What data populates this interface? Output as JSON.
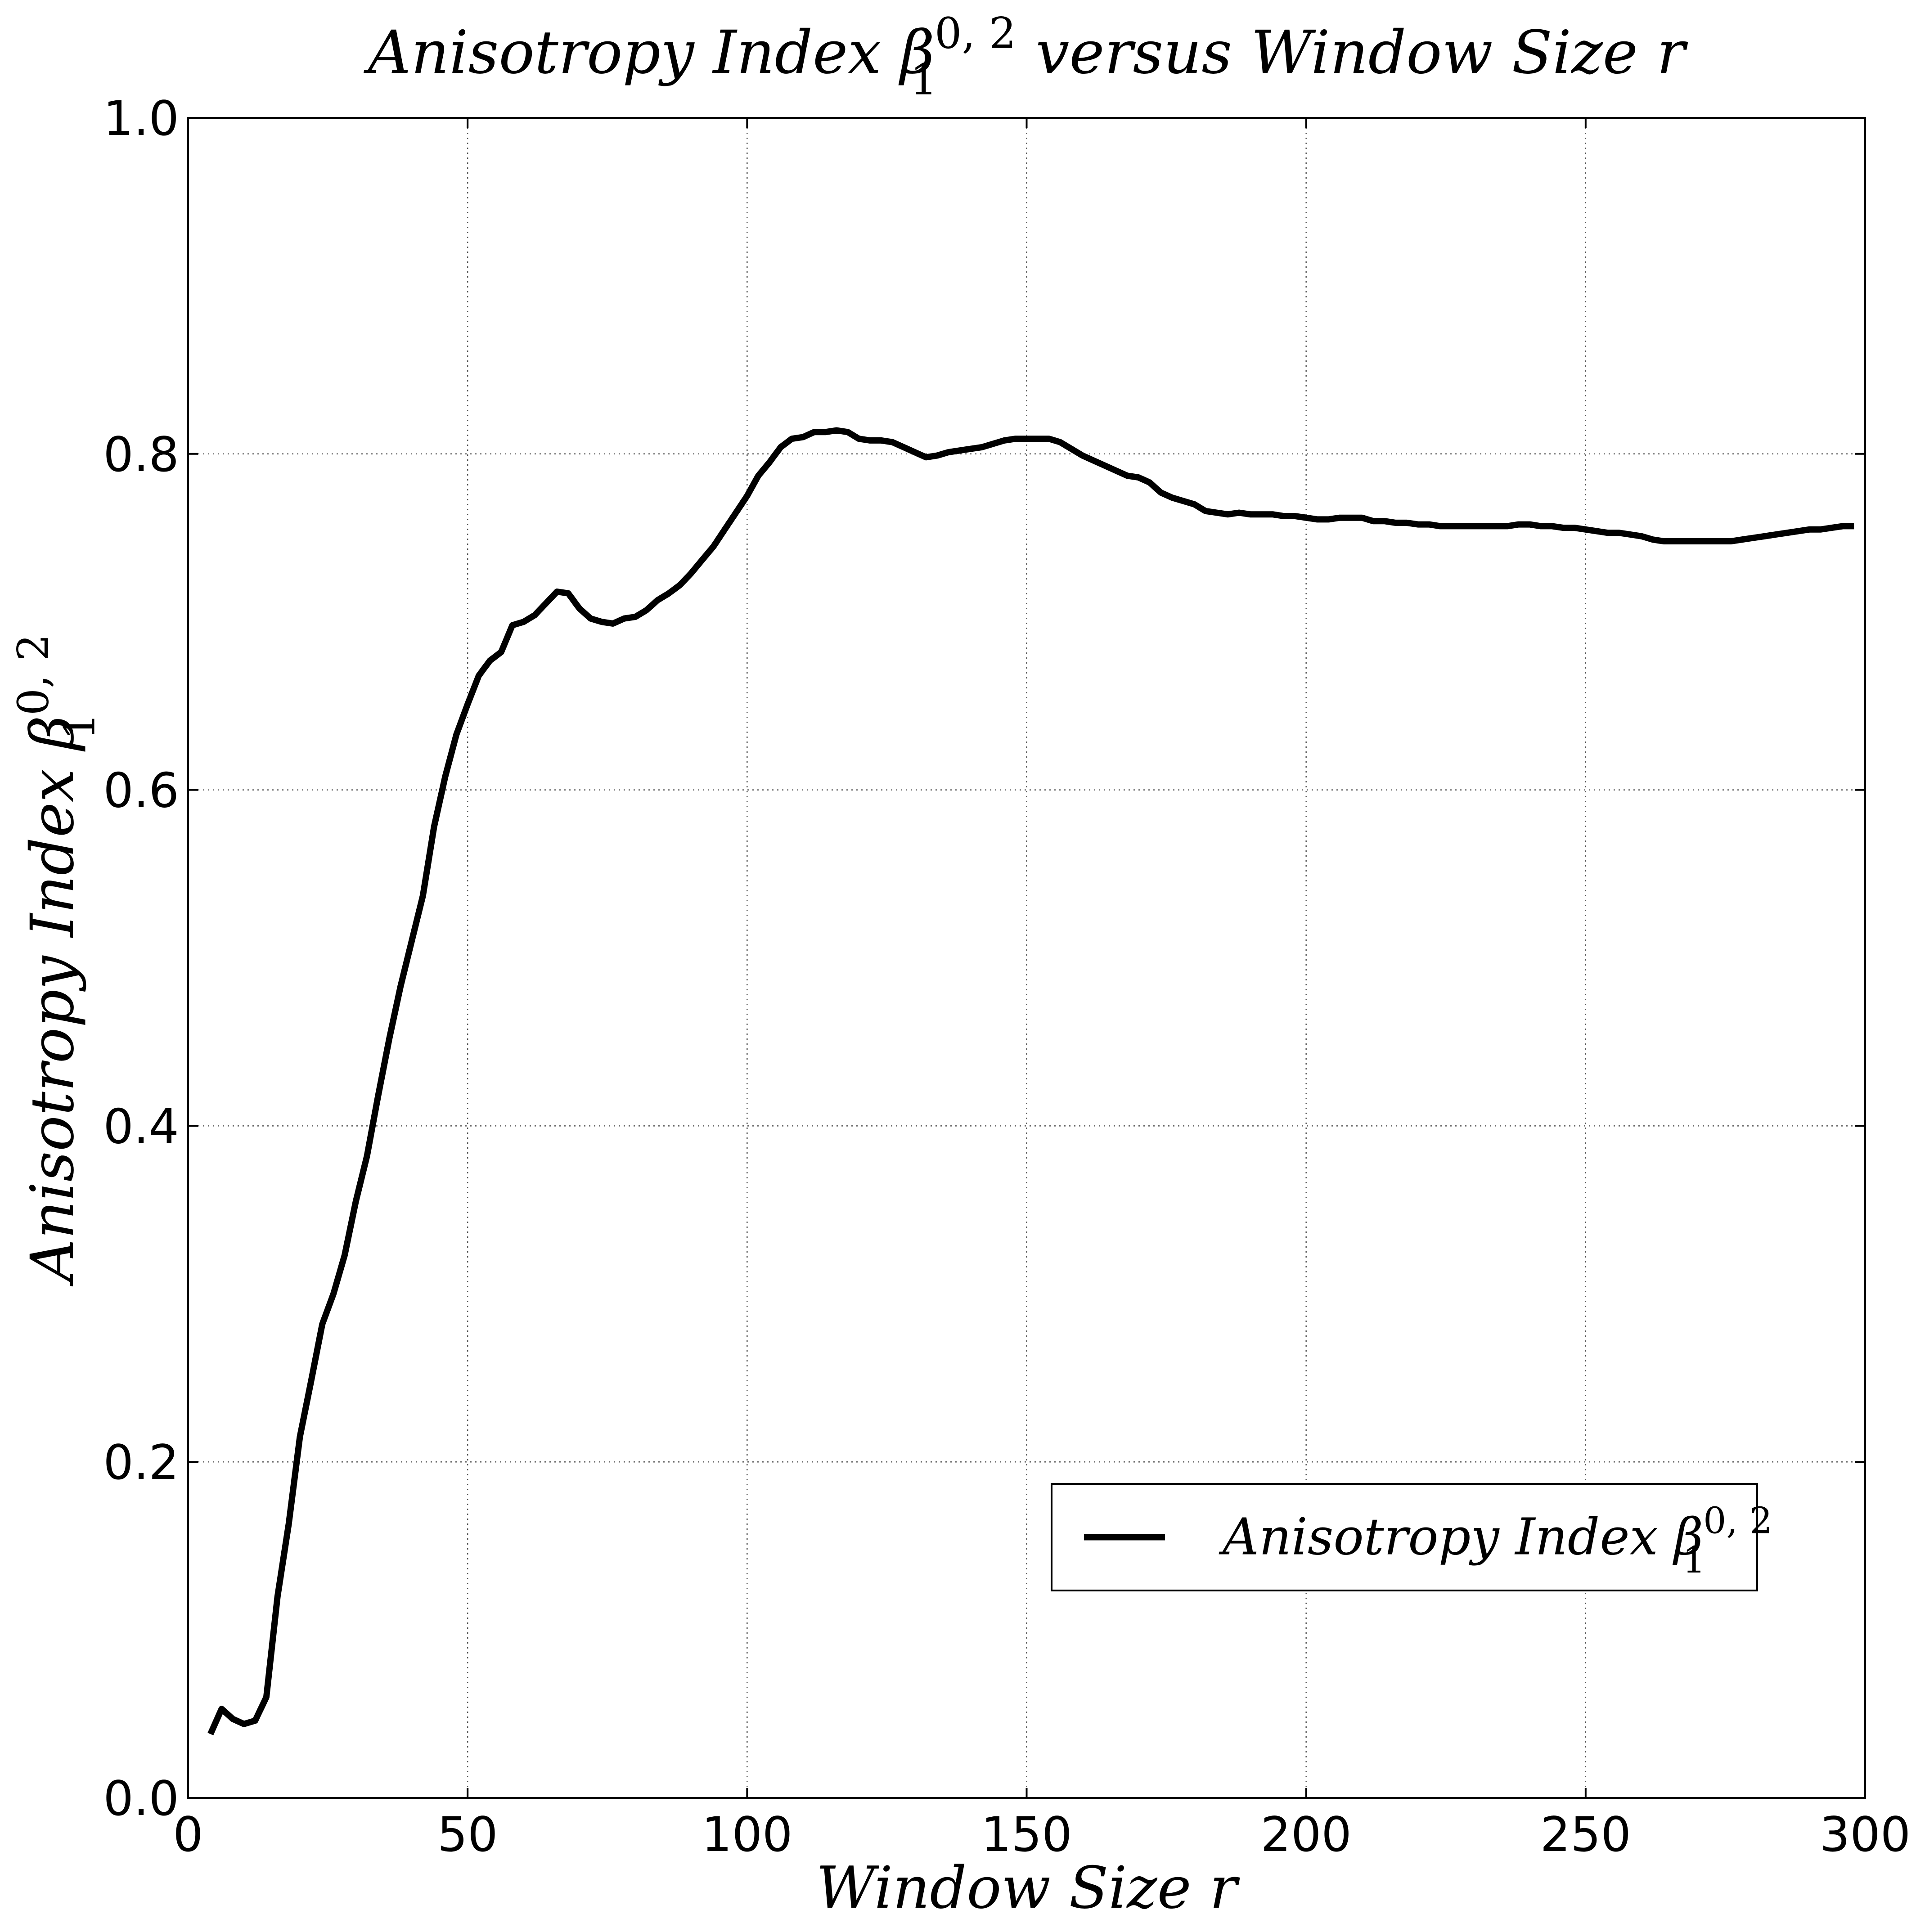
{
  "chart_data": {
    "type": "line",
    "title": {
      "pre": "Anisotropy Index ",
      "symbol": "β",
      "sub": "1",
      "sup": "0, 2",
      "post": " versus Window Size r"
    },
    "xlabel": "Window Size r",
    "ylabel": {
      "pre": "Anisotropy Index ",
      "symbol": "β",
      "sub": "1",
      "sup": "0, 2"
    },
    "xlim": [
      0,
      300
    ],
    "ylim": [
      0.0,
      1.0
    ],
    "xticks": [
      0,
      50,
      100,
      150,
      200,
      250,
      300
    ],
    "xtick_labels": [
      "0",
      "50",
      "100",
      "150",
      "200",
      "250",
      "300"
    ],
    "yticks": [
      0.0,
      0.2,
      0.4,
      0.6,
      0.8,
      1.0
    ],
    "ytick_labels": [
      "0.0",
      "0.2",
      "0.4",
      "0.6",
      "0.8",
      "1.0"
    ],
    "grid": true,
    "legend_position": "lower-right",
    "line_color": "#000000",
    "series": [
      {
        "legend": {
          "pre": "Anisotropy Index ",
          "symbol": "β",
          "sub": "1",
          "sup": "0, 2"
        },
        "x": [
          4,
          6,
          8,
          10,
          12,
          14,
          16,
          18,
          20,
          22,
          24,
          26,
          28,
          30,
          32,
          34,
          36,
          38,
          40,
          42,
          44,
          46,
          48,
          50,
          52,
          54,
          56,
          58,
          60,
          62,
          64,
          66,
          68,
          70,
          72,
          74,
          76,
          78,
          80,
          82,
          84,
          86,
          88,
          90,
          92,
          94,
          96,
          98,
          100,
          102,
          104,
          106,
          108,
          110,
          112,
          114,
          116,
          118,
          120,
          122,
          124,
          126,
          128,
          130,
          132,
          134,
          136,
          138,
          140,
          142,
          144,
          146,
          148,
          150,
          152,
          154,
          156,
          158,
          160,
          162,
          164,
          166,
          168,
          170,
          172,
          174,
          176,
          178,
          180,
          182,
          184,
          186,
          188,
          190,
          192,
          194,
          196,
          198,
          200,
          202,
          204,
          206,
          208,
          210,
          212,
          214,
          216,
          218,
          220,
          222,
          224,
          226,
          228,
          230,
          232,
          234,
          236,
          238,
          240,
          242,
          244,
          246,
          248,
          250,
          252,
          254,
          256,
          258,
          260,
          262,
          264,
          266,
          268,
          270,
          272,
          274,
          276,
          278,
          280,
          282,
          284,
          286,
          288,
          290,
          292,
          294,
          296,
          298
        ],
        "y": [
          0.038,
          0.053,
          0.047,
          0.044,
          0.046,
          0.06,
          0.12,
          0.163,
          0.215,
          0.248,
          0.282,
          0.3,
          0.323,
          0.355,
          0.382,
          0.418,
          0.452,
          0.483,
          0.51,
          0.537,
          0.578,
          0.608,
          0.633,
          0.651,
          0.668,
          0.677,
          0.682,
          0.698,
          0.7,
          0.704,
          0.711,
          0.718,
          0.717,
          0.708,
          0.702,
          0.7,
          0.699,
          0.702,
          0.703,
          0.707,
          0.713,
          0.717,
          0.722,
          0.729,
          0.737,
          0.745,
          0.755,
          0.765,
          0.775,
          0.787,
          0.795,
          0.804,
          0.809,
          0.81,
          0.813,
          0.813,
          0.814,
          0.813,
          0.809,
          0.808,
          0.808,
          0.807,
          0.804,
          0.801,
          0.798,
          0.799,
          0.801,
          0.802,
          0.803,
          0.804,
          0.806,
          0.808,
          0.809,
          0.809,
          0.809,
          0.809,
          0.807,
          0.803,
          0.799,
          0.796,
          0.793,
          0.79,
          0.787,
          0.786,
          0.783,
          0.777,
          0.774,
          0.772,
          0.77,
          0.766,
          0.765,
          0.764,
          0.765,
          0.764,
          0.764,
          0.764,
          0.763,
          0.763,
          0.762,
          0.761,
          0.761,
          0.762,
          0.762,
          0.762,
          0.76,
          0.76,
          0.759,
          0.759,
          0.758,
          0.758,
          0.757,
          0.757,
          0.757,
          0.757,
          0.757,
          0.757,
          0.757,
          0.758,
          0.758,
          0.757,
          0.757,
          0.756,
          0.756,
          0.755,
          0.754,
          0.753,
          0.753,
          0.752,
          0.751,
          0.749,
          0.748,
          0.748,
          0.748,
          0.748,
          0.748,
          0.748,
          0.748,
          0.749,
          0.75,
          0.751,
          0.752,
          0.753,
          0.754,
          0.755,
          0.755,
          0.756,
          0.757,
          0.757
        ]
      }
    ]
  }
}
